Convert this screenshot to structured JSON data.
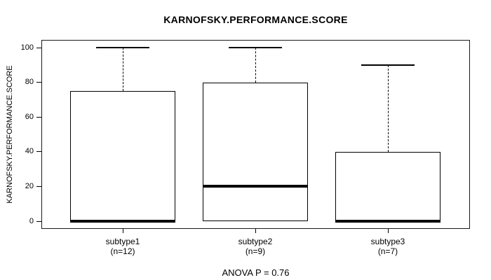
{
  "title": "KARNOFSKY.PERFORMANCE.SCORE",
  "y_axis": {
    "label": "KARNOFSKY.PERFORMANCE.SCORE",
    "tick_labels": [
      "0",
      "20",
      "40",
      "60",
      "80",
      "100"
    ]
  },
  "footer": "ANOVA P = 0.76",
  "chart_data": {
    "type": "boxplot",
    "title": "KARNOFSKY.PERFORMANCE.SCORE",
    "xlabel": "",
    "ylabel": "KARNOFSKY.PERFORMANCE.SCORE",
    "ylim": [
      0,
      100
    ],
    "y_ticks": [
      0,
      20,
      40,
      60,
      80,
      100
    ],
    "grid": false,
    "legend": "none",
    "annotation": "ANOVA P = 0.76",
    "categories": [
      "subtype1",
      "subtype2",
      "subtype3"
    ],
    "groups": [
      {
        "label": "subtype1",
        "sublabel": "(n=12)",
        "n": 12,
        "whisker_low": 0,
        "q1": 0,
        "median": 0,
        "q3": 75,
        "whisker_high": 100,
        "outliers": []
      },
      {
        "label": "subtype2",
        "sublabel": "(n=9)",
        "n": 9,
        "whisker_low": 0,
        "q1": 0,
        "median": 20,
        "q3": 80,
        "whisker_high": 100,
        "outliers": []
      },
      {
        "label": "subtype3",
        "sublabel": "(n=7)",
        "n": 7,
        "whisker_low": 0,
        "q1": 0,
        "median": 0,
        "q3": 40,
        "whisker_high": 90,
        "outliers": []
      }
    ],
    "colors": {
      "line": "#000000",
      "box_fill": "#ffffff",
      "background": "#ffffff"
    }
  }
}
